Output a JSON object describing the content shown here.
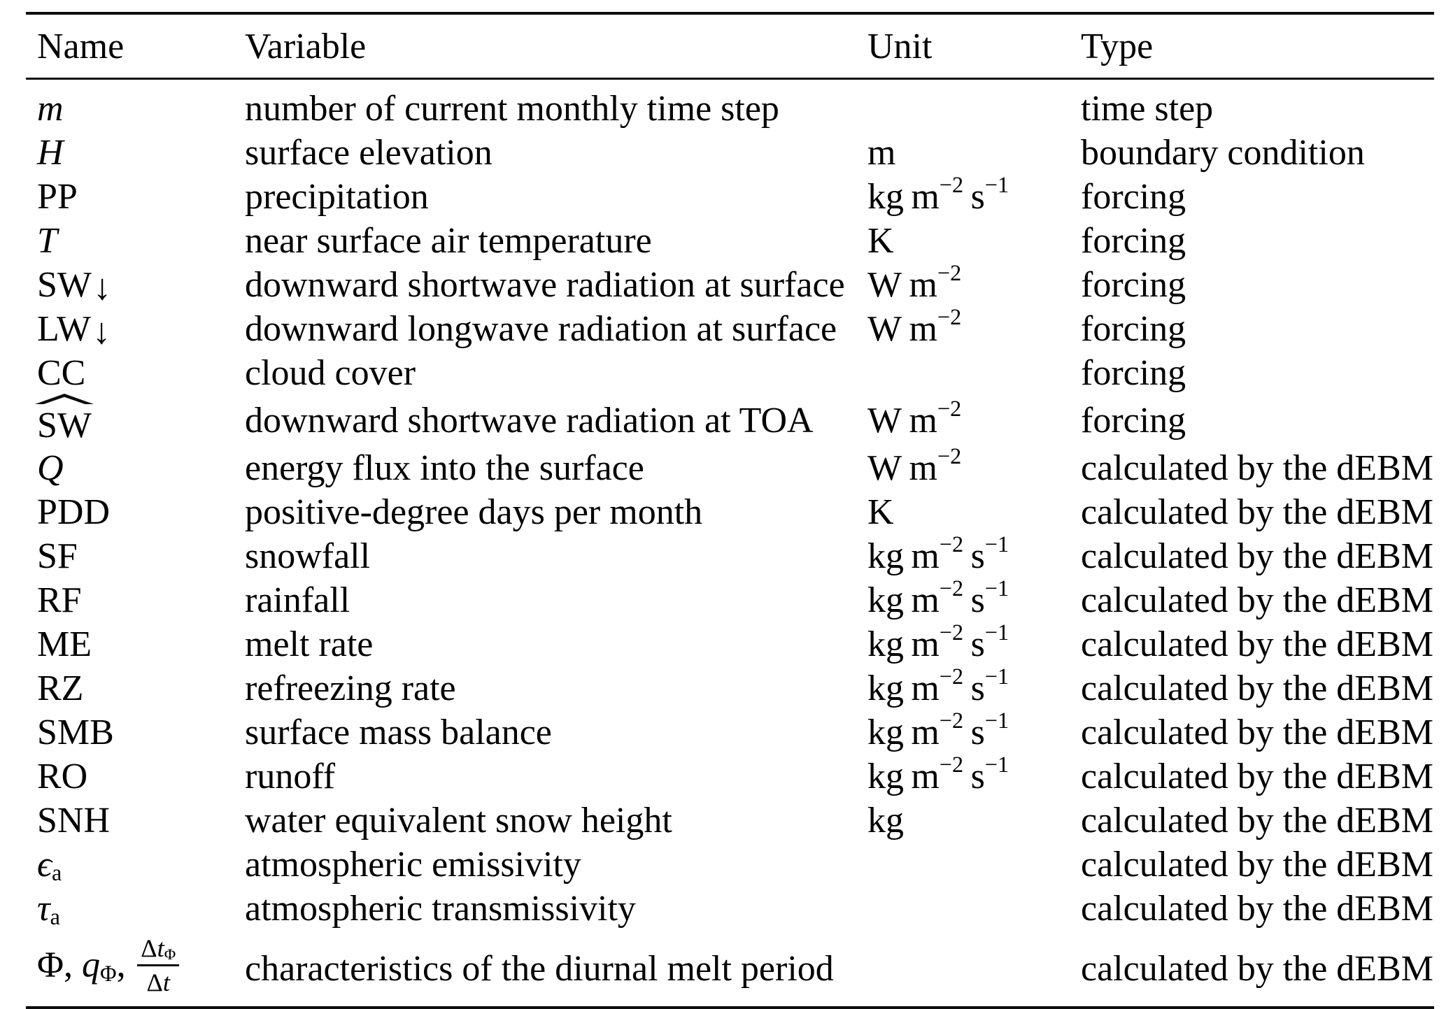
{
  "page": {
    "background": "#ffffff",
    "text_color": "#000000",
    "rule_color": "#0d0d0d"
  },
  "table": {
    "columns": [
      {
        "label": "Name"
      },
      {
        "label": "Variable"
      },
      {
        "label": "Unit"
      },
      {
        "label": "Type"
      }
    ],
    "rows": [
      {
        "name_html": "<i>m</i>",
        "variable": "number of current monthly time step",
        "unit_html": "",
        "type": "time step"
      },
      {
        "name_html": "<i>H</i>",
        "variable": "surface elevation",
        "unit_html": "m",
        "type": "boundary condition"
      },
      {
        "name_html": "PP",
        "variable": "precipitation",
        "unit_html": "kg m<sup>−2</sup> s<sup>−1</sup>",
        "type": "forcing"
      },
      {
        "name_html": "<i>T</i>",
        "variable": "near surface air temperature",
        "unit_html": "K",
        "type": "forcing"
      },
      {
        "name_html": "SW<span class=\"arrow-down\">↓</span>",
        "variable": "downward shortwave radiation at surface",
        "unit_html": "W m<sup>−2</sup>",
        "type": "forcing"
      },
      {
        "name_html": "LW<span class=\"arrow-down\">↓</span>",
        "variable": "downward longwave radiation at surface",
        "unit_html": "W m<sup>−2</sup>",
        "type": "forcing"
      },
      {
        "name_html": "CC",
        "variable": "cloud cover",
        "unit_html": "",
        "type": "forcing"
      },
      {
        "name_html": "<span class=\"widehat\">SW</span>",
        "variable": "downward shortwave radiation at TOA",
        "unit_html": "W m<sup>−2</sup>",
        "type": "forcing"
      },
      {
        "name_html": "<i>Q</i>",
        "variable": "energy flux into the surface",
        "unit_html": "W m<sup>−2</sup>",
        "type": "calculated by the dEBM"
      },
      {
        "name_html": "PDD",
        "variable": "positive-degree days per month",
        "unit_html": "K",
        "type": "calculated by the dEBM"
      },
      {
        "name_html": "SF",
        "variable": "snowfall",
        "unit_html": "kg m<sup>−2</sup> s<sup>−1</sup>",
        "type": "calculated by the dEBM"
      },
      {
        "name_html": "RF",
        "variable": "rainfall",
        "unit_html": "kg m<sup>−2</sup> s<sup>−1</sup>",
        "type": "calculated by the dEBM"
      },
      {
        "name_html": "ME",
        "variable": "melt rate",
        "unit_html": "kg m<sup>−2</sup> s<sup>−1</sup>",
        "type": "calculated by the dEBM"
      },
      {
        "name_html": "RZ",
        "variable": "refreezing rate",
        "unit_html": "kg m<sup>−2</sup> s<sup>−1</sup>",
        "type": "calculated by the dEBM"
      },
      {
        "name_html": "SMB",
        "variable": "surface mass balance",
        "unit_html": "kg m<sup>−2</sup> s<sup>−1</sup>",
        "type": "calculated by the dEBM"
      },
      {
        "name_html": "RO",
        "variable": "runoff",
        "unit_html": "kg m<sup>−2</sup> s<sup>−1</sup>",
        "type": "calculated by the dEBM"
      },
      {
        "name_html": "SNH",
        "variable": "water equivalent snow height",
        "unit_html": "kg",
        "type": "calculated by the dEBM"
      },
      {
        "name_html": "<i>ϵ</i><sub>a</sub>",
        "variable": "atmospheric emissivity",
        "unit_html": "",
        "type": "calculated by the dEBM"
      },
      {
        "name_html": "<i>τ</i><sub>a</sub>",
        "variable": "atmospheric transmissivity",
        "unit_html": "",
        "type": "calculated by the dEBM"
      },
      {
        "name_html": "Φ, <i>q</i><sub>Φ</sub>, <span class=\"frac\"><span class=\"num\">Δ<i>t</i><sub>Φ</sub></span><span class=\"den\">Δ<i>t</i></span></span>",
        "variable": "characteristics of the diurnal melt period",
        "unit_html": "",
        "type": "calculated by the dEBM"
      }
    ]
  }
}
